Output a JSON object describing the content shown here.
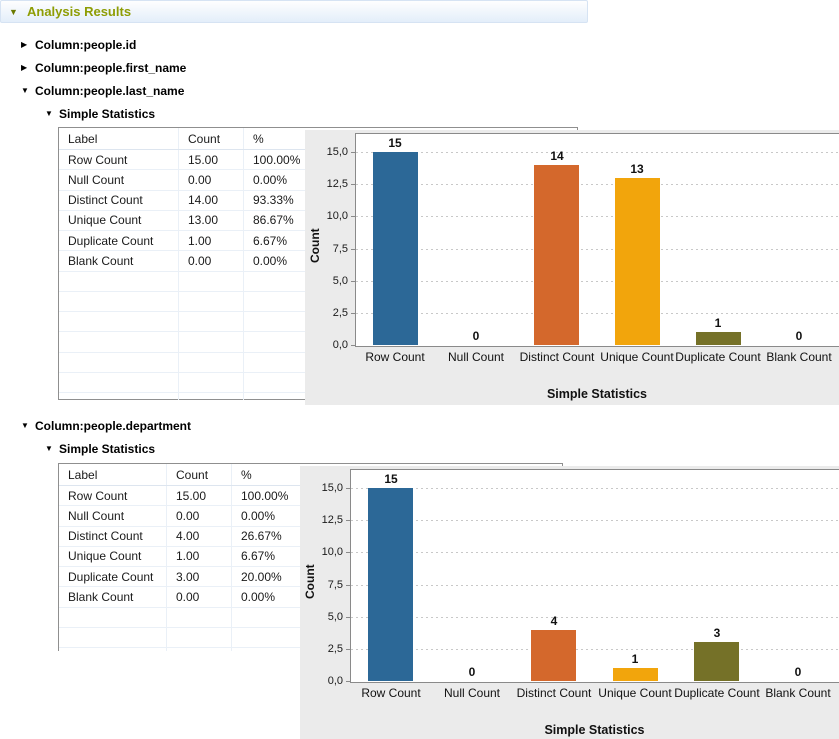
{
  "header": {
    "title": "Analysis Results"
  },
  "icons": {
    "expanded": "▼",
    "collapsed": "▶"
  },
  "tree": {
    "collapsed": [
      {
        "label": "Column:people.id"
      },
      {
        "label": "Column:people.first_name"
      }
    ]
  },
  "sections": [
    {
      "column_label": "Column:people.last_name",
      "subsection_label": "Simple Statistics",
      "table": {
        "headers": [
          "Label",
          "Count",
          "%"
        ],
        "rows": [
          [
            "Row Count",
            "15.00",
            "100.00%"
          ],
          [
            "Null Count",
            "0.00",
            "0.00%"
          ],
          [
            "Distinct Count",
            "14.00",
            "93.33%"
          ],
          [
            "Unique Count",
            "13.00",
            "86.67%"
          ],
          [
            "Duplicate Count",
            "1.00",
            "6.67%"
          ],
          [
            "Blank Count",
            "0.00",
            "0.00%"
          ]
        ]
      },
      "chart": {
        "type": "bar",
        "xlabel": "Simple Statistics",
        "ylabel": "Count",
        "categories": [
          "Row Count",
          "Null Count",
          "Distinct Count",
          "Unique Count",
          "Duplicate Count",
          "Blank Count"
        ],
        "values": [
          15,
          0,
          14,
          13,
          1,
          0
        ],
        "bar_labels": [
          "15",
          "0",
          "14",
          "13",
          "1",
          "0"
        ],
        "bar_colors": [
          "#2c6897",
          null,
          "#d4682c",
          "#f2a50c",
          "#757128",
          null
        ],
        "ytick_values": [
          0,
          2.5,
          5,
          7.5,
          10,
          12.5,
          15
        ],
        "ytick_labels": [
          "0,0",
          "2,5",
          "5,0",
          "7,5",
          "10,0",
          "12,5",
          "15,0"
        ],
        "ylim": [
          0,
          16.5
        ],
        "grid": "dashed-horizontal",
        "legend": "none"
      }
    },
    {
      "column_label": "Column:people.department",
      "subsection_label": "Simple Statistics",
      "table": {
        "headers": [
          "Label",
          "Count",
          "%"
        ],
        "rows": [
          [
            "Row Count",
            "15.00",
            "100.00%"
          ],
          [
            "Null Count",
            "0.00",
            "0.00%"
          ],
          [
            "Distinct Count",
            "4.00",
            "26.67%"
          ],
          [
            "Unique Count",
            "1.00",
            "6.67%"
          ],
          [
            "Duplicate Count",
            "3.00",
            "20.00%"
          ],
          [
            "Blank Count",
            "0.00",
            "0.00%"
          ]
        ]
      },
      "chart": {
        "type": "bar",
        "xlabel": "Simple Statistics",
        "ylabel": "Count",
        "categories": [
          "Row Count",
          "Null Count",
          "Distinct Count",
          "Unique Count",
          "Duplicate Count",
          "Blank Count"
        ],
        "values": [
          15,
          0,
          4,
          1,
          3,
          0
        ],
        "bar_labels": [
          "15",
          "0",
          "4",
          "1",
          "3",
          "0"
        ],
        "bar_colors": [
          "#2c6897",
          null,
          "#d4682c",
          "#f2a50c",
          "#757128",
          null
        ],
        "ytick_values": [
          0,
          2.5,
          5,
          7.5,
          10,
          12.5,
          15
        ],
        "ytick_labels": [
          "0,0",
          "2,5",
          "5,0",
          "7,5",
          "10,0",
          "12,5",
          "15,0"
        ],
        "ylim": [
          0,
          16.5
        ],
        "grid": "dashed-horizontal",
        "legend": "none"
      }
    }
  ],
  "colors": {
    "section_title": "#8e9d04",
    "chart_panel_bg": "#ebebeb",
    "table_border": "#8f8f8f",
    "bar_blue": "#2c6897",
    "bar_orange": "#d4682c",
    "bar_amber": "#f2a50c",
    "bar_olive": "#757128"
  }
}
